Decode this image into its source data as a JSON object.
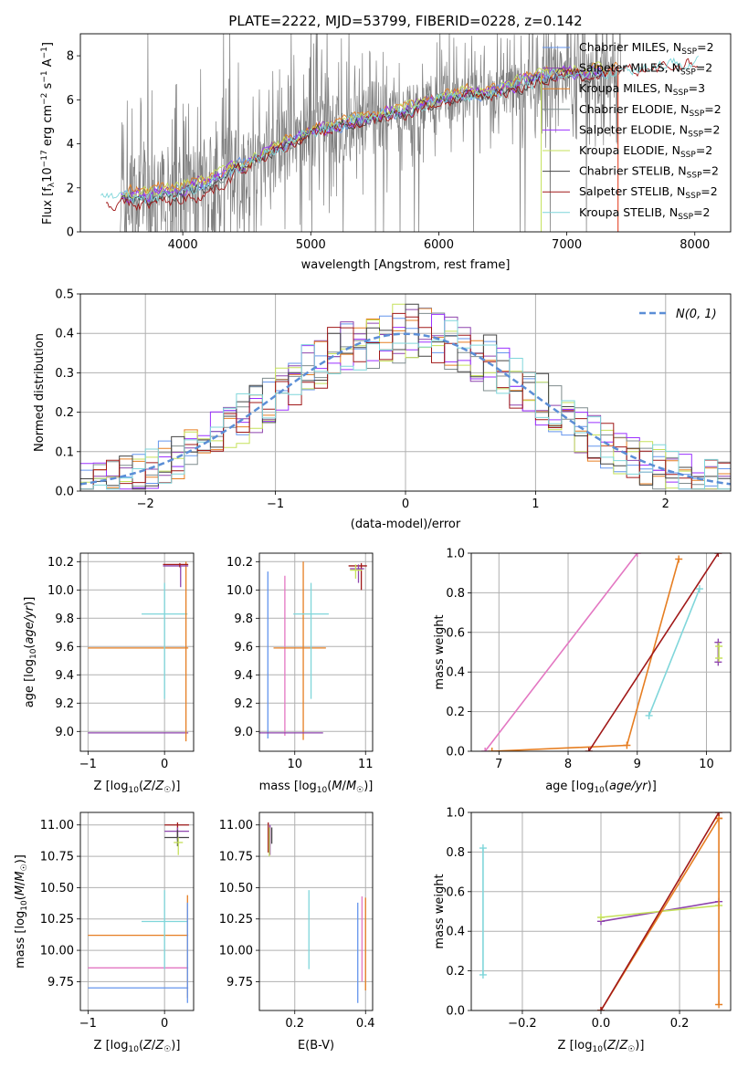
{
  "figure_title": "PLATE=2222, MJD=53799, FIBERID=0228, z=0.142",
  "colors": {
    "Chabrier MILES": "#6495ed",
    "Salpeter MILES": "#8e44ad",
    "Kroupa MILES": "#e67e22",
    "Chabrier ELODIE": "#7f8c8d",
    "Salpeter ELODIE": "#9b30ff",
    "Kroupa ELODIE": "#c5e15a",
    "Chabrier STELIB": "#444444",
    "Salpeter STELIB": "#a01818",
    "Kroupa STELIB": "#7fd6da",
    "pink": "#e377c2",
    "data": "#7f7f7f",
    "gauss": "#5b8ed6",
    "grid": "#b0b0b0"
  },
  "chart_data": [
    {
      "id": "spectrum",
      "type": "line",
      "xlabel": "wavelength [Angstrom, rest frame]",
      "ylabel_parts": [
        "Flux [f",
        "λ",
        "10",
        "−17",
        " erg cm",
        "−2",
        " s",
        "−1",
        " A",
        "−1",
        "]"
      ],
      "xlim": [
        3200,
        8280
      ],
      "ylim": [
        0,
        9
      ],
      "xticks": [
        4000,
        5000,
        6000,
        7000,
        8000
      ],
      "yticks": [
        0,
        2,
        4,
        6,
        8
      ],
      "legend": "top-right",
      "legend_entries": [
        {
          "name": "Chabrier MILES",
          "suffix": "SSP",
          "n": "2",
          "color": "#6495ed"
        },
        {
          "name": "Salpeter MILES",
          "suffix": "SSP",
          "n": "2",
          "color": "#8e44ad"
        },
        {
          "name": "Kroupa MILES",
          "suffix": "SSP",
          "n": "3",
          "color": "#e67e22"
        },
        {
          "name": "Chabrier ELODIE",
          "suffix": "SSP",
          "n": "2",
          "color": "#7f8c8d"
        },
        {
          "name": "Salpeter ELODIE",
          "suffix": "SSP",
          "n": "2",
          "color": "#9b30ff"
        },
        {
          "name": "Kroupa ELODIE",
          "suffix": "SSP",
          "n": "2",
          "color": "#c5e15a"
        },
        {
          "name": "Chabrier STELIB",
          "suffix": "SSP",
          "n": "2",
          "color": "#444444"
        },
        {
          "name": "Salpeter STELIB",
          "suffix": "SSP",
          "n": "2",
          "color": "#a01818"
        },
        {
          "name": "Kroupa STELIB",
          "suffix": "SSP",
          "n": "2",
          "color": "#7fd6da"
        }
      ],
      "continuum": {
        "x": [
          3360,
          3600,
          3800,
          4000,
          4200,
          4400,
          4600,
          4800,
          5000,
          5200,
          5400,
          5600,
          5800,
          6000,
          6200,
          6400,
          6600,
          6800,
          7000,
          7200,
          7400,
          7600,
          7800,
          8000
        ],
        "y": [
          1.6,
          1.5,
          1.6,
          1.8,
          2.1,
          2.8,
          3.4,
          3.9,
          4.5,
          4.8,
          5.1,
          5.3,
          5.6,
          6.0,
          6.2,
          6.3,
          6.6,
          7.0,
          7.2,
          7.2,
          7.3,
          7.5,
          7.6,
          7.8
        ]
      }
    },
    {
      "id": "residuals",
      "type": "bar",
      "xlabel": "(data-model)/error",
      "ylabel": "Normed distribution",
      "xlim": [
        -2.5,
        2.5
      ],
      "ylim": [
        0,
        0.5
      ],
      "xticks": [
        -2,
        -1,
        0,
        1,
        2
      ],
      "yticks": [
        0.0,
        0.1,
        0.2,
        0.3,
        0.4,
        0.5
      ],
      "legend": "top-right",
      "legend_label": "N(0, 1)",
      "gaussian": {
        "mean": 0,
        "sigma": 1
      }
    },
    {
      "id": "age-vs-Z",
      "type": "scatter",
      "xlabel": "Z [log10(Z/Z☉)]",
      "ylabel": "age [log10(age/yr)]",
      "xlim": [
        -1.1,
        0.38
      ],
      "ylim": [
        8.86,
        10.26
      ],
      "xticks": [
        -1,
        0
      ],
      "yticks": [
        9.0,
        9.2,
        9.4,
        9.6,
        9.8,
        10.0,
        10.2
      ],
      "errorbars": [
        {
          "x": -0.44,
          "xlo": -1.0,
          "xhi": 0.31,
          "y": 8.99,
          "ylo": 8.99,
          "yhi": 8.99,
          "color": "#8e44ad"
        },
        {
          "x": -0.44,
          "xlo": -1.0,
          "xhi": 0.31,
          "y": 9.59,
          "ylo": 9.59,
          "yhi": 9.59,
          "color": "#e67e22"
        },
        {
          "x": 0.0,
          "xlo": -0.3,
          "xhi": 0.3,
          "y": 9.83,
          "ylo": 9.23,
          "yhi": 10.05,
          "color": "#7fd6da"
        },
        {
          "x": 0.28,
          "xlo": 0.28,
          "xhi": 0.28,
          "y": 9.59,
          "ylo": 8.93,
          "yhi": 10.2,
          "color": "#e67e22"
        },
        {
          "x": 0.2,
          "xlo": -0.02,
          "xhi": 0.31,
          "y": 10.17,
          "ylo": 10.17,
          "yhi": 10.17,
          "color": "#8e44ad"
        },
        {
          "x": 0.2,
          "xlo": -0.02,
          "xhi": 0.31,
          "y": 10.18,
          "ylo": 10.16,
          "yhi": 10.19,
          "color": "#a01818"
        },
        {
          "x": 0.21,
          "xlo": 0.21,
          "xhi": 0.21,
          "y": 10.1,
          "ylo": 10.02,
          "yhi": 10.17,
          "color": "#8e44ad"
        }
      ]
    },
    {
      "id": "age-vs-mass",
      "type": "scatter",
      "xlabel": "mass [log10(M/M☉)]",
      "xlim": [
        9.5,
        11.1
      ],
      "ylim": [
        8.86,
        10.26
      ],
      "xticks": [
        10,
        11
      ],
      "yticks": [
        9.0,
        9.2,
        9.4,
        9.6,
        9.8,
        10.0,
        10.2
      ],
      "errorbars": [
        {
          "x": 9.62,
          "xlo": 9.62,
          "xhi": 9.62,
          "y": 9.5,
          "ylo": 8.95,
          "yhi": 10.13,
          "color": "#6495ed"
        },
        {
          "x": 9.86,
          "xlo": 9.86,
          "xhi": 9.86,
          "y": 9.5,
          "ylo": 8.97,
          "yhi": 10.1,
          "color": "#e377c2"
        },
        {
          "x": 10.1,
          "xlo": 9.7,
          "xhi": 10.44,
          "y": 9.59,
          "ylo": 9.59,
          "yhi": 9.59,
          "color": "#e67e22"
        },
        {
          "x": 10.12,
          "xlo": 10.12,
          "xhi": 10.12,
          "y": 9.5,
          "ylo": 8.94,
          "yhi": 10.2,
          "color": "#e67e22"
        },
        {
          "x": 10.23,
          "xlo": 9.98,
          "xhi": 10.48,
          "y": 9.83,
          "ylo": 9.23,
          "yhi": 10.05,
          "color": "#7fd6da"
        },
        {
          "x": 10.2,
          "xlo": 9.5,
          "xhi": 10.4,
          "y": 8.99,
          "ylo": 8.99,
          "yhi": 8.99,
          "color": "#8e44ad"
        },
        {
          "x": 10.94,
          "xlo": 10.76,
          "xhi": 11.02,
          "y": 10.17,
          "ylo": 10.0,
          "yhi": 10.19,
          "color": "#a01818"
        },
        {
          "x": 10.9,
          "xlo": 10.78,
          "xhi": 10.98,
          "y": 10.15,
          "ylo": 10.05,
          "yhi": 10.18,
          "color": "#8e44ad"
        },
        {
          "x": 10.86,
          "xlo": 10.78,
          "xhi": 10.95,
          "y": 10.14,
          "ylo": 10.08,
          "yhi": 10.18,
          "color": "#c5e15a"
        }
      ]
    },
    {
      "id": "massweight-vs-age",
      "type": "line",
      "xlabel": "age [log10(age/yr)]",
      "ylabel": "mass weight",
      "xlim": [
        6.6,
        10.35
      ],
      "ylim": [
        0,
        1
      ],
      "xticks": [
        7,
        8,
        9,
        10
      ],
      "yticks": [
        0.0,
        0.2,
        0.4,
        0.6,
        0.8,
        1.0
      ],
      "series": [
        {
          "color": "#e377c2",
          "x": [
            6.8,
            9.0
          ],
          "y": [
            0.0,
            1.0
          ]
        },
        {
          "color": "#e67e22",
          "x": [
            6.9,
            8.85,
            9.6
          ],
          "y": [
            0.0,
            0.03,
            0.97
          ]
        },
        {
          "color": "#a01818",
          "x": [
            8.3,
            10.17
          ],
          "y": [
            0.0,
            1.0
          ]
        },
        {
          "color": "#7fd6da",
          "x": [
            9.17,
            9.9
          ],
          "y": [
            0.18,
            0.82
          ]
        },
        {
          "color": "#8e44ad",
          "x": [
            10.17,
            10.17
          ],
          "y": [
            0.45,
            0.55
          ]
        },
        {
          "color": "#c5e15a",
          "x": [
            10.18,
            10.18
          ],
          "y": [
            0.47,
            0.53
          ]
        }
      ]
    },
    {
      "id": "mass-vs-Z",
      "type": "scatter",
      "xlabel": "Z [log10(Z/Z☉)]",
      "ylabel": "mass [log10(M/M☉)]",
      "xlim": [
        -1.1,
        0.38
      ],
      "ylim": [
        9.52,
        11.1
      ],
      "xticks": [
        -1,
        0
      ],
      "yticks": [
        9.75,
        10.0,
        10.25,
        10.5,
        10.75,
        11.0
      ],
      "errorbars": [
        {
          "x": -0.35,
          "xlo": -1.0,
          "xhi": 0.31,
          "y": 9.7,
          "ylo": 9.7,
          "yhi": 9.7,
          "color": "#6495ed"
        },
        {
          "x": -0.35,
          "xlo": -1.0,
          "xhi": 0.31,
          "y": 9.86,
          "ylo": 9.86,
          "yhi": 9.86,
          "color": "#e377c2"
        },
        {
          "x": -0.35,
          "xlo": -1.0,
          "xhi": 0.31,
          "y": 10.12,
          "ylo": 10.12,
          "yhi": 10.12,
          "color": "#e67e22"
        },
        {
          "x": 0.0,
          "xlo": -0.3,
          "xhi": 0.3,
          "y": 10.23,
          "ylo": 9.85,
          "yhi": 10.48,
          "color": "#7fd6da"
        },
        {
          "x": 0.3,
          "xlo": 0.3,
          "xhi": 0.3,
          "y": 10.0,
          "ylo": 9.62,
          "yhi": 10.44,
          "color": "#e67e22"
        },
        {
          "x": 0.3,
          "xlo": 0.3,
          "xhi": 0.3,
          "y": 9.8,
          "ylo": 9.58,
          "yhi": 10.38,
          "color": "#6495ed"
        },
        {
          "x": 0.17,
          "xlo": 0.0,
          "xhi": 0.32,
          "y": 11.0,
          "ylo": 10.9,
          "yhi": 11.02,
          "color": "#a01818"
        },
        {
          "x": 0.17,
          "xlo": 0.0,
          "xhi": 0.32,
          "y": 10.95,
          "ylo": 10.88,
          "yhi": 10.98,
          "color": "#8e44ad"
        },
        {
          "x": 0.17,
          "xlo": 0.0,
          "xhi": 0.32,
          "y": 10.9,
          "ylo": 10.83,
          "yhi": 10.96,
          "color": "#444444"
        },
        {
          "x": 0.18,
          "xlo": 0.12,
          "xhi": 0.24,
          "y": 10.86,
          "ylo": 10.76,
          "yhi": 10.9,
          "color": "#c5e15a"
        }
      ]
    },
    {
      "id": "mass-vs-EBV",
      "type": "scatter",
      "xlabel": "E(B-V)",
      "xlim": [
        0.1,
        0.42
      ],
      "ylim": [
        9.52,
        11.1
      ],
      "xticks": [
        0.2,
        0.4
      ],
      "yticks": [
        9.75,
        10.0,
        10.25,
        10.5,
        10.75,
        11.0
      ],
      "errorbars": [
        {
          "x": 0.125,
          "xlo": 0.125,
          "xhi": 0.125,
          "y": 10.9,
          "ylo": 10.78,
          "yhi": 11.02,
          "color": "#a01818"
        },
        {
          "x": 0.13,
          "xlo": 0.13,
          "xhi": 0.13,
          "y": 10.9,
          "ylo": 10.76,
          "yhi": 11.0,
          "color": "#8e44ad"
        },
        {
          "x": 0.128,
          "xlo": 0.128,
          "xhi": 0.128,
          "y": 10.88,
          "ylo": 10.75,
          "yhi": 10.98,
          "color": "#c5e15a"
        },
        {
          "x": 0.135,
          "xlo": 0.135,
          "xhi": 0.135,
          "y": 10.92,
          "ylo": 10.85,
          "yhi": 10.98,
          "color": "#444444"
        },
        {
          "x": 0.24,
          "xlo": 0.24,
          "xhi": 0.24,
          "y": 10.2,
          "ylo": 9.85,
          "yhi": 10.48,
          "color": "#7fd6da"
        },
        {
          "x": 0.378,
          "xlo": 0.378,
          "xhi": 0.378,
          "y": 10.0,
          "ylo": 9.58,
          "yhi": 10.38,
          "color": "#6495ed"
        },
        {
          "x": 0.39,
          "xlo": 0.39,
          "xhi": 0.39,
          "y": 10.0,
          "ylo": 9.75,
          "yhi": 10.43,
          "color": "#e377c2"
        },
        {
          "x": 0.4,
          "xlo": 0.4,
          "xhi": 0.4,
          "y": 10.0,
          "ylo": 9.68,
          "yhi": 10.42,
          "color": "#e67e22"
        }
      ]
    },
    {
      "id": "massweight-vs-Z",
      "type": "line",
      "xlabel": "Z [log10(Z/Z☉)]",
      "ylabel": "mass weight",
      "xlim": [
        -0.33,
        0.33
      ],
      "ylim": [
        0,
        1
      ],
      "xticks": [
        -0.2,
        0.0,
        0.2
      ],
      "yticks": [
        0.0,
        0.2,
        0.4,
        0.6,
        0.8,
        1.0
      ],
      "series": [
        {
          "color": "#7fd6da",
          "x": [
            -0.3,
            -0.3
          ],
          "y": [
            0.18,
            0.82
          ]
        },
        {
          "color": "#8e44ad",
          "x": [
            0.0,
            0.3
          ],
          "y": [
            0.45,
            0.55
          ]
        },
        {
          "color": "#c5e15a",
          "x": [
            0.0,
            0.3
          ],
          "y": [
            0.47,
            0.53
          ]
        },
        {
          "color": "#e67e22",
          "x": [
            0.3,
            0.3
          ],
          "y": [
            0.03,
            0.97
          ]
        },
        {
          "color": "#e67e22",
          "x": [
            0.0,
            0.3
          ],
          "y": [
            0.0,
            0.97
          ]
        },
        {
          "color": "#a01818",
          "x": [
            0.0,
            0.3
          ],
          "y": [
            0.0,
            1.0
          ]
        }
      ]
    }
  ]
}
